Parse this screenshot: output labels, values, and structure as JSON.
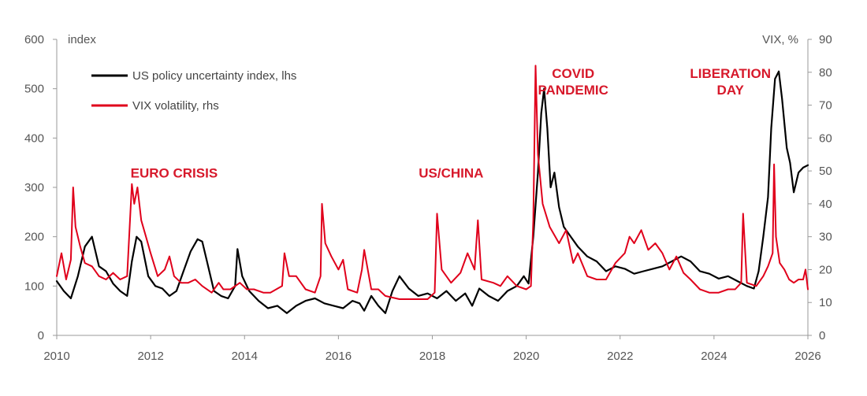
{
  "chart_data": {
    "type": "line",
    "title": "",
    "xlabel": "",
    "left_axis": {
      "unit_label": "index",
      "ylim": [
        0,
        600
      ],
      "ticks": [
        "0",
        "100",
        "200",
        "300",
        "400",
        "500",
        "600"
      ]
    },
    "right_axis": {
      "unit_label": "VIX, %",
      "ylim": [
        0,
        90
      ],
      "ticks": [
        "0",
        "10",
        "20",
        "30",
        "40",
        "50",
        "60",
        "70",
        "80",
        "90"
      ]
    },
    "x_axis": {
      "xlim": [
        2010,
        2026
      ],
      "ticks": [
        "2010",
        "2012",
        "2014",
        "2016",
        "2018",
        "2020",
        "2022",
        "2024",
        "2026"
      ]
    },
    "grid": false,
    "legend_position": "top-left",
    "series": [
      {
        "name": "US policy uncertainty index, lhs",
        "axis": "left",
        "color": "#000000",
        "x": [
          2010.0,
          2010.15,
          2010.3,
          2010.45,
          2010.6,
          2010.75,
          2010.9,
          2011.05,
          2011.2,
          2011.35,
          2011.5,
          2011.6,
          2011.7,
          2011.8,
          2011.95,
          2012.1,
          2012.25,
          2012.4,
          2012.55,
          2012.7,
          2012.85,
          2013.0,
          2013.1,
          2013.2,
          2013.35,
          2013.5,
          2013.65,
          2013.8,
          2013.85,
          2013.95,
          2014.1,
          2014.3,
          2014.5,
          2014.7,
          2014.9,
          2015.1,
          2015.3,
          2015.5,
          2015.7,
          2015.9,
          2016.1,
          2016.3,
          2016.45,
          2016.55,
          2016.7,
          2016.85,
          2017.0,
          2017.15,
          2017.3,
          2017.5,
          2017.7,
          2017.9,
          2018.1,
          2018.3,
          2018.5,
          2018.7,
          2018.85,
          2019.0,
          2019.2,
          2019.4,
          2019.6,
          2019.8,
          2019.95,
          2020.05,
          2020.15,
          2020.25,
          2020.32,
          2020.38,
          2020.45,
          2020.52,
          2020.6,
          2020.7,
          2020.8,
          2020.95,
          2021.1,
          2021.3,
          2021.5,
          2021.7,
          2021.9,
          2022.1,
          2022.3,
          2022.5,
          2022.7,
          2022.9,
          2023.1,
          2023.3,
          2023.5,
          2023.7,
          2023.9,
          2024.1,
          2024.3,
          2024.5,
          2024.7,
          2024.85,
          2024.95,
          2025.05,
          2025.15,
          2025.22,
          2025.3,
          2025.38,
          2025.45,
          2025.55,
          2025.62,
          2025.7,
          2025.8,
          2025.9,
          2026.0
        ],
        "values": [
          110,
          90,
          75,
          120,
          180,
          200,
          140,
          130,
          105,
          90,
          80,
          150,
          200,
          190,
          120,
          100,
          95,
          80,
          90,
          130,
          170,
          195,
          190,
          150,
          90,
          80,
          75,
          100,
          175,
          120,
          90,
          70,
          55,
          60,
          45,
          60,
          70,
          75,
          65,
          60,
          55,
          70,
          65,
          50,
          80,
          60,
          45,
          90,
          120,
          95,
          80,
          85,
          75,
          90,
          70,
          85,
          60,
          95,
          80,
          70,
          90,
          100,
          120,
          105,
          200,
          330,
          450,
          500,
          420,
          300,
          330,
          260,
          220,
          200,
          180,
          160,
          150,
          130,
          140,
          135,
          125,
          130,
          135,
          140,
          150,
          160,
          150,
          130,
          125,
          115,
          120,
          110,
          100,
          95,
          130,
          200,
          280,
          420,
          520,
          535,
          480,
          380,
          350,
          290,
          330,
          340,
          345
        ]
      },
      {
        "name": "VIX volatility, rhs",
        "axis": "right",
        "color": "#e0001b",
        "x": [
          2010.0,
          2010.1,
          2010.2,
          2010.3,
          2010.35,
          2010.4,
          2010.5,
          2010.6,
          2010.75,
          2010.9,
          2011.05,
          2011.2,
          2011.35,
          2011.5,
          2011.6,
          2011.65,
          2011.72,
          2011.8,
          2011.9,
          2012.0,
          2012.15,
          2012.3,
          2012.4,
          2012.5,
          2012.65,
          2012.8,
          2012.95,
          2013.1,
          2013.3,
          2013.45,
          2013.55,
          2013.7,
          2013.9,
          2014.05,
          2014.2,
          2014.4,
          2014.55,
          2014.8,
          2014.85,
          2014.95,
          2015.1,
          2015.3,
          2015.5,
          2015.62,
          2015.65,
          2015.72,
          2015.85,
          2016.0,
          2016.1,
          2016.2,
          2016.4,
          2016.5,
          2016.55,
          2016.7,
          2016.85,
          2017.0,
          2017.3,
          2017.6,
          2017.9,
          2018.05,
          2018.1,
          2018.2,
          2018.4,
          2018.6,
          2018.75,
          2018.9,
          2018.97,
          2019.05,
          2019.3,
          2019.45,
          2019.6,
          2019.8,
          2020.0,
          2020.1,
          2020.15,
          2020.2,
          2020.25,
          2020.35,
          2020.5,
          2020.7,
          2020.85,
          2021.0,
          2021.1,
          2021.3,
          2021.5,
          2021.7,
          2021.9,
          2022.1,
          2022.2,
          2022.3,
          2022.45,
          2022.6,
          2022.75,
          2022.9,
          2023.05,
          2023.2,
          2023.35,
          2023.5,
          2023.7,
          2023.9,
          2024.1,
          2024.3,
          2024.45,
          2024.58,
          2024.62,
          2024.7,
          2024.9,
          2025.05,
          2025.15,
          2025.25,
          2025.28,
          2025.32,
          2025.4,
          2025.5,
          2025.6,
          2025.7,
          2025.8,
          2025.9,
          2025.95,
          2026.0
        ],
        "values": [
          18,
          25,
          17,
          23,
          45,
          33,
          27,
          22,
          21,
          18,
          17,
          19,
          17,
          18,
          46,
          40,
          45,
          35,
          30,
          25,
          18,
          20,
          24,
          18,
          16,
          16,
          17,
          15,
          13,
          16,
          14,
          14,
          16,
          14,
          14,
          13,
          13,
          15,
          25,
          18,
          18,
          14,
          13,
          18,
          40,
          28,
          24,
          20,
          23,
          14,
          13,
          20,
          26,
          14,
          14,
          12,
          11,
          11,
          11,
          13,
          37,
          20,
          16,
          19,
          25,
          20,
          35,
          17,
          16,
          15,
          18,
          15,
          14,
          15,
          35,
          82,
          55,
          40,
          33,
          28,
          32,
          22,
          25,
          18,
          17,
          17,
          22,
          25,
          30,
          28,
          32,
          26,
          28,
          25,
          20,
          24,
          19,
          17,
          14,
          13,
          13,
          14,
          14,
          16,
          37,
          16,
          15,
          18,
          21,
          25,
          52,
          30,
          22,
          20,
          17,
          16,
          17,
          17,
          20,
          14
        ]
      }
    ],
    "annotations": [
      {
        "lines": [
          "EURO CRISIS"
        ],
        "x": 2012.5,
        "y_left": 320
      },
      {
        "lines": [
          "US/CHINA"
        ],
        "x": 2018.4,
        "y_left": 320
      },
      {
        "lines": [
          "COVID",
          "PANDEMIC"
        ],
        "x": 2021.0,
        "y_left": 522
      },
      {
        "lines": [
          "LIBERATION",
          "DAY"
        ],
        "x": 2024.35,
        "y_left": 522
      }
    ]
  }
}
